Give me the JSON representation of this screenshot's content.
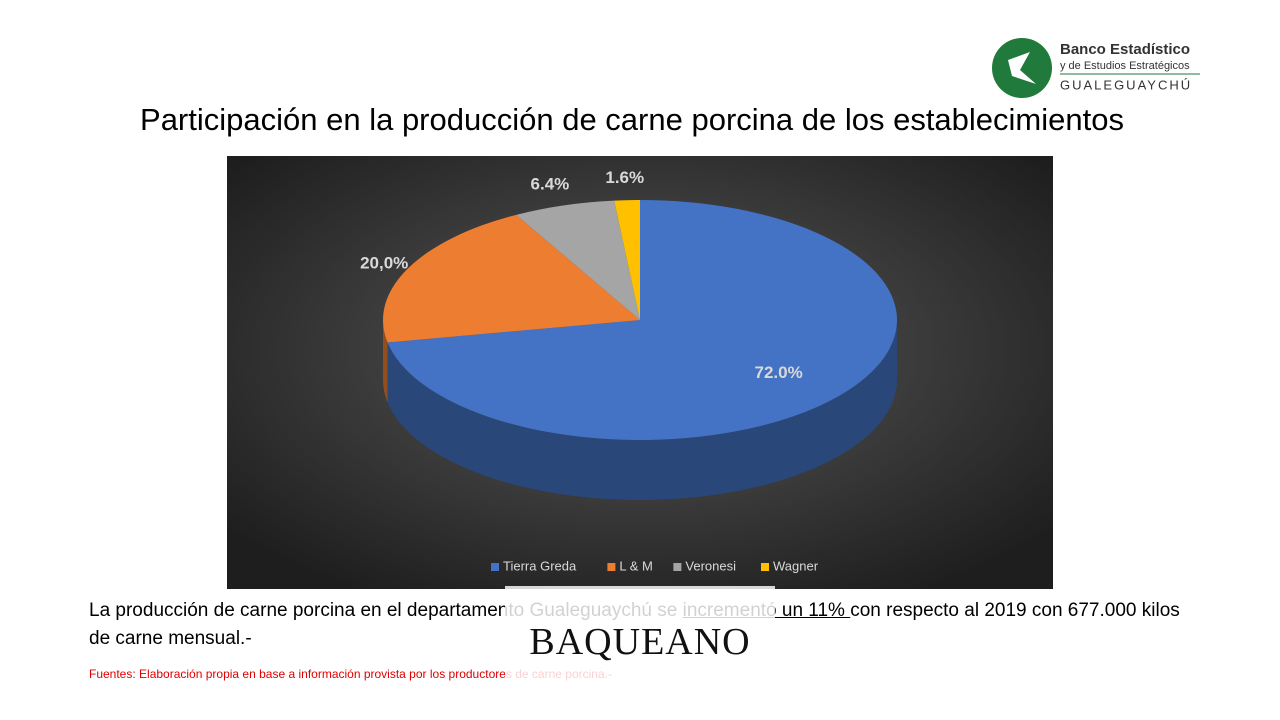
{
  "logo": {
    "line1": "Banco Estadístico",
    "line2": "y de Estudios Estratégicos",
    "line3": "GUALEGUAYCHÚ"
  },
  "chart_data": {
    "type": "pie",
    "title": "Participación en la producción de carne porcina de los establecimientos",
    "categories": [
      "Tierra Greda",
      "L & M",
      "Veronesi",
      "Wagner"
    ],
    "values": [
      72.0,
      20.0,
      6.4,
      1.6
    ],
    "value_labels": [
      "72.0%",
      "20,0%",
      "6.4%",
      "1.6%"
    ],
    "colors": [
      "#4472c4",
      "#ed7d31",
      "#a5a5a5",
      "#ffc000"
    ],
    "legend": "bottom"
  },
  "body": {
    "parts": [
      "La producción de carne porcina en el departamento Gualeguaychú se ",
      "incrementó un 11% ",
      "con respecto al 2019 con 677.000 kilos de carne mensual.-"
    ]
  },
  "watermark": "BAQUEANO",
  "sources": "Fuentes: Elaboración propia en base a información provista por los  productores  de carne porcina.-"
}
